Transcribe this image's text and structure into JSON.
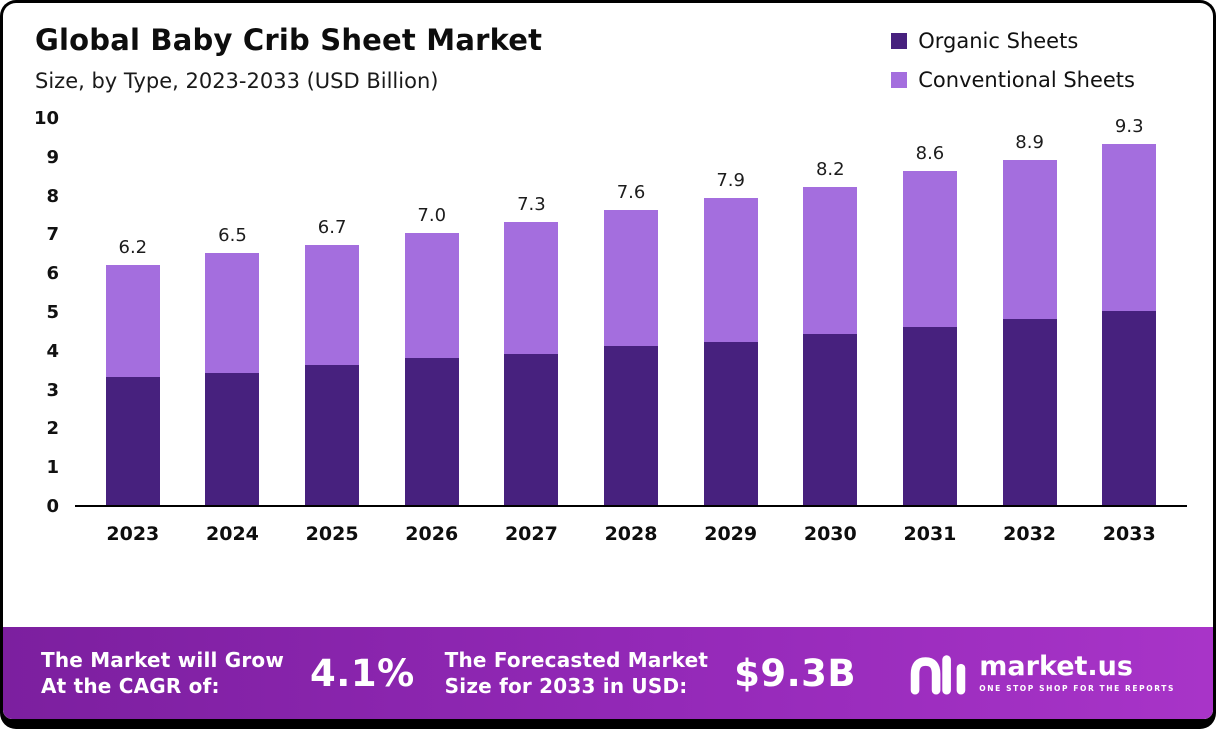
{
  "header": {
    "title": "Global Baby Crib Sheet Market",
    "subtitle": "Size, by Type, 2023-2033 (USD Billion)"
  },
  "legend": [
    {
      "label": "Organic Sheets",
      "color": "#47217e"
    },
    {
      "label": "Conventional Sheets",
      "color": "#a46ede"
    }
  ],
  "chart_data": {
    "type": "bar",
    "stacked": true,
    "title": "Global Baby Crib Sheet Market Size, by Type, 2023-2033 (USD Billion)",
    "categories": [
      "2023",
      "2024",
      "2025",
      "2026",
      "2027",
      "2028",
      "2029",
      "2030",
      "2031",
      "2032",
      "2033"
    ],
    "series": [
      {
        "name": "Organic Sheets",
        "color": "#47217e",
        "values": [
          3.3,
          3.4,
          3.6,
          3.8,
          3.9,
          4.1,
          4.2,
          4.4,
          4.6,
          4.8,
          5.0
        ]
      },
      {
        "name": "Conventional Sheets",
        "color": "#a46ede",
        "values": [
          2.9,
          3.1,
          3.1,
          3.2,
          3.4,
          3.5,
          3.7,
          3.8,
          4.0,
          4.1,
          4.3
        ]
      }
    ],
    "totals": [
      "6.2",
      "6.5",
      "6.7",
      "7.0",
      "7.3",
      "7.6",
      "7.9",
      "8.2",
      "8.6",
      "8.9",
      "9.3"
    ],
    "xlabel": "",
    "ylabel": "",
    "ylim": [
      0,
      10
    ],
    "yticks": [
      0,
      1,
      2,
      3,
      4,
      5,
      6,
      7,
      8,
      9,
      10
    ],
    "grid": false,
    "legend_position": "top-right"
  },
  "footer": {
    "cagr_label": "The Market will Grow\nAt the CAGR of:",
    "cagr_value": "4.1%",
    "forecast_label": "The Forecasted Market\nSize for 2033 in USD:",
    "forecast_value": "$9.3B",
    "brand": "market.us",
    "brand_tagline": "ONE STOP SHOP FOR THE REPORTS"
  }
}
